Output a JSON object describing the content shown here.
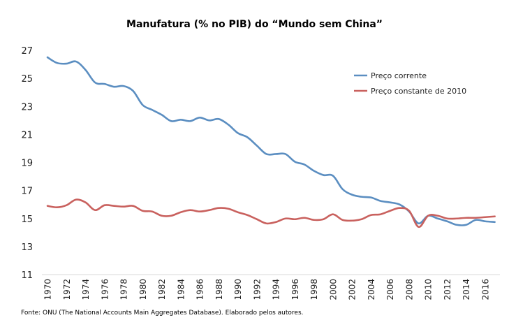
{
  "chart_data": {
    "type": "line",
    "title": "Manufatura (% no PIB) do “Mundo sem China”",
    "xlabel": "",
    "ylabel": "",
    "ylim": [
      11,
      27
    ],
    "yticks": [
      11,
      13,
      15,
      17,
      19,
      21,
      23,
      25,
      27
    ],
    "xlim": [
      1970,
      2017
    ],
    "xticks": [
      1970,
      1972,
      1974,
      1976,
      1978,
      1980,
      1982,
      1984,
      1986,
      1988,
      1990,
      1992,
      1994,
      1996,
      1998,
      2000,
      2002,
      2004,
      2006,
      2008,
      2010,
      2012,
      2014,
      2016
    ],
    "grid": false,
    "legend_position": "top-right",
    "x": [
      1970,
      1971,
      1972,
      1973,
      1974,
      1975,
      1976,
      1977,
      1978,
      1979,
      1980,
      1981,
      1982,
      1983,
      1984,
      1985,
      1986,
      1987,
      1988,
      1989,
      1990,
      1991,
      1992,
      1993,
      1994,
      1995,
      1996,
      1997,
      1998,
      1999,
      2000,
      2001,
      2002,
      2003,
      2004,
      2005,
      2006,
      2007,
      2008,
      2009,
      2010,
      2011,
      2012,
      2013,
      2014,
      2015,
      2016,
      2017
    ],
    "series": [
      {
        "name": "Preço corrente",
        "color": "#5B8EC1",
        "values": [
          26.5,
          26.1,
          26.05,
          26.2,
          25.6,
          24.7,
          24.6,
          24.4,
          24.45,
          24.1,
          23.1,
          22.75,
          22.4,
          21.95,
          22.05,
          21.95,
          22.2,
          22.0,
          22.1,
          21.7,
          21.1,
          20.8,
          20.2,
          19.6,
          19.6,
          19.6,
          19.05,
          18.85,
          18.4,
          18.1,
          18.05,
          17.1,
          16.7,
          16.55,
          16.5,
          16.25,
          16.15,
          16.0,
          15.5,
          14.65,
          15.2,
          15.0,
          14.8,
          14.55,
          14.55,
          14.9,
          14.8,
          14.75
        ]
      },
      {
        "name": "Preço constante de 2010",
        "color": "#C9615E",
        "values": [
          15.9,
          15.8,
          15.95,
          16.35,
          16.15,
          15.6,
          15.95,
          15.9,
          15.85,
          15.9,
          15.55,
          15.5,
          15.2,
          15.2,
          15.45,
          15.6,
          15.5,
          15.6,
          15.75,
          15.7,
          15.45,
          15.25,
          14.95,
          14.65,
          14.75,
          15.0,
          14.95,
          15.05,
          14.9,
          14.95,
          15.3,
          14.9,
          14.85,
          14.95,
          15.25,
          15.3,
          15.55,
          15.75,
          15.55,
          14.4,
          15.2,
          15.2,
          15.0,
          15.0,
          15.05,
          15.05,
          15.1,
          15.15
        ]
      }
    ],
    "source_note": "Fonte: ONU (The National Accounts Main Aggregates Database). Elaborado pelos autores."
  },
  "axis_color": "#D9D9D9"
}
